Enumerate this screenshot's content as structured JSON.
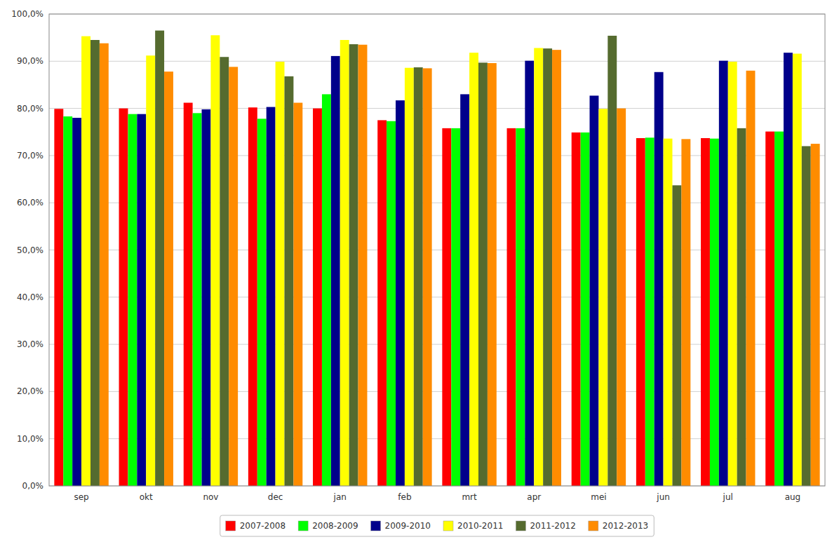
{
  "chart_data": {
    "type": "bar",
    "categories": [
      "sep",
      "okt",
      "nov",
      "dec",
      "jan",
      "feb",
      "mrt",
      "apr",
      "mei",
      "jun",
      "jul",
      "aug"
    ],
    "series": [
      {
        "name": "2007-2008",
        "color": "#FF0000",
        "values": [
          79.9,
          80.0,
          81.2,
          80.2,
          80.0,
          77.5,
          75.8,
          75.8,
          74.9,
          73.7,
          73.7,
          75.1
        ]
      },
      {
        "name": "2008-2009",
        "color": "#00FF00",
        "values": [
          78.3,
          78.8,
          79.0,
          77.8,
          83.0,
          77.3,
          75.8,
          75.8,
          74.9,
          73.8,
          73.6,
          75.1
        ]
      },
      {
        "name": "2009-2010",
        "color": "#00008B",
        "values": [
          78.0,
          78.8,
          79.8,
          80.3,
          91.1,
          81.7,
          83.0,
          90.1,
          82.7,
          87.7,
          90.1,
          91.8
        ]
      },
      {
        "name": "2010-2011",
        "color": "#FFFF00",
        "values": [
          95.3,
          91.2,
          95.5,
          89.9,
          94.5,
          88.6,
          91.8,
          92.8,
          79.9,
          73.6,
          89.9,
          91.6
        ]
      },
      {
        "name": "2011-2012",
        "color": "#556B2F",
        "values": [
          94.5,
          96.5,
          90.9,
          86.8,
          93.6,
          88.7,
          89.7,
          92.7,
          95.4,
          63.7,
          75.8,
          72.0
        ]
      },
      {
        "name": "2012-2013",
        "color": "#FF8C00",
        "values": [
          93.8,
          87.8,
          88.8,
          81.2,
          93.5,
          88.5,
          89.6,
          92.4,
          80.0,
          73.5,
          88.0,
          72.5
        ]
      }
    ],
    "ylim": [
      0,
      100
    ],
    "yticks": [
      {
        "value": 0,
        "label": "0,0%"
      },
      {
        "value": 10,
        "label": "10,0%"
      },
      {
        "value": 20,
        "label": "20,0%"
      },
      {
        "value": 30,
        "label": "30,0%"
      },
      {
        "value": 40,
        "label": "40,0%"
      },
      {
        "value": 50,
        "label": "50,0%"
      },
      {
        "value": 60,
        "label": "60,0%"
      },
      {
        "value": 70,
        "label": "70,0%"
      },
      {
        "value": 80,
        "label": "80,0%"
      },
      {
        "value": 90,
        "label": "90,0%"
      },
      {
        "value": 100,
        "label": "100,0%"
      }
    ],
    "grid": true,
    "legend": "bottom"
  }
}
